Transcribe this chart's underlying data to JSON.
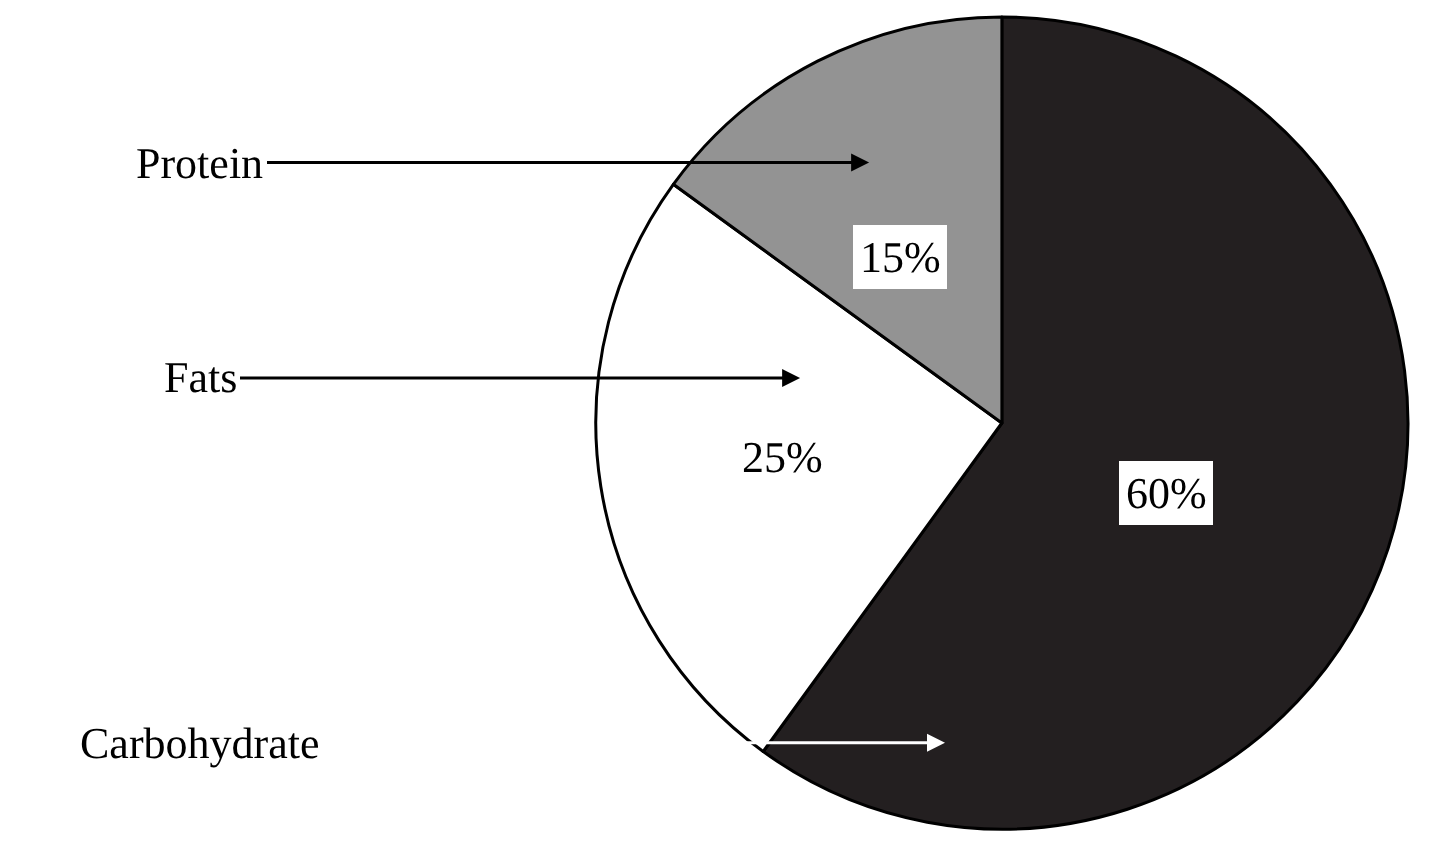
{
  "chart_data": {
    "type": "pie",
    "categories": [
      "Carbohydrate",
      "Fats",
      "Protein"
    ],
    "values": [
      60,
      25,
      15
    ],
    "colors": [
      "#231f20",
      "#ffffff",
      "#939393"
    ],
    "value_labels": [
      "60%",
      "25%",
      "15%"
    ],
    "legend": false
  }
}
